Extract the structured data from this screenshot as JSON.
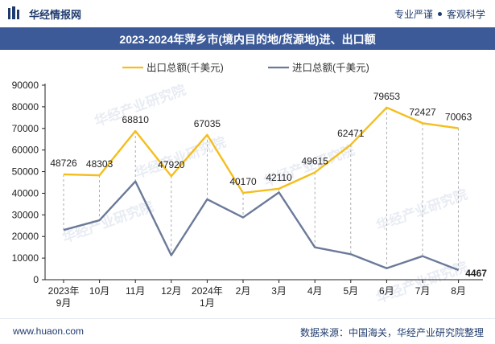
{
  "header": {
    "brand": "华经情报网",
    "tagline_left": "专业严谨",
    "tagline_right": "客观科学",
    "brand_color": "#1f3b6e"
  },
  "title": "2023-2024年萍乡市(境内目的地/货源地)进、出口额",
  "footer": {
    "url": "www.huaon.com",
    "source": "数据来源：中国海关，华经产业研究院整理"
  },
  "chart_data": {
    "type": "line",
    "categories": [
      "2023年\n9月",
      "10月",
      "11月",
      "12月",
      "2024年\n1月",
      "2月",
      "3月",
      "4月",
      "5月",
      "6月",
      "7月",
      "8月"
    ],
    "series": [
      {
        "name": "出口总额(千美元)",
        "color": "#f5be1e",
        "values": [
          48726,
          48303,
          68810,
          47920,
          67035,
          40170,
          42110,
          49615,
          62471,
          79653,
          72427,
          70063
        ],
        "labels_shown": true
      },
      {
        "name": "进口总额(千美元)",
        "color": "#6b7a99",
        "values": [
          23000,
          27500,
          45500,
          11300,
          37200,
          28800,
          40400,
          15000,
          11800,
          5300,
          10900,
          4467
        ],
        "labels_shown": "last-only",
        "last_label": "4467"
      }
    ],
    "yticks": [
      0,
      10000,
      20000,
      30000,
      40000,
      50000,
      60000,
      70000,
      80000,
      90000
    ],
    "ylim": [
      0,
      90000
    ],
    "legend": "top-center",
    "grid": false,
    "drop_lines": true,
    "watermark": "华经产业研究院"
  }
}
